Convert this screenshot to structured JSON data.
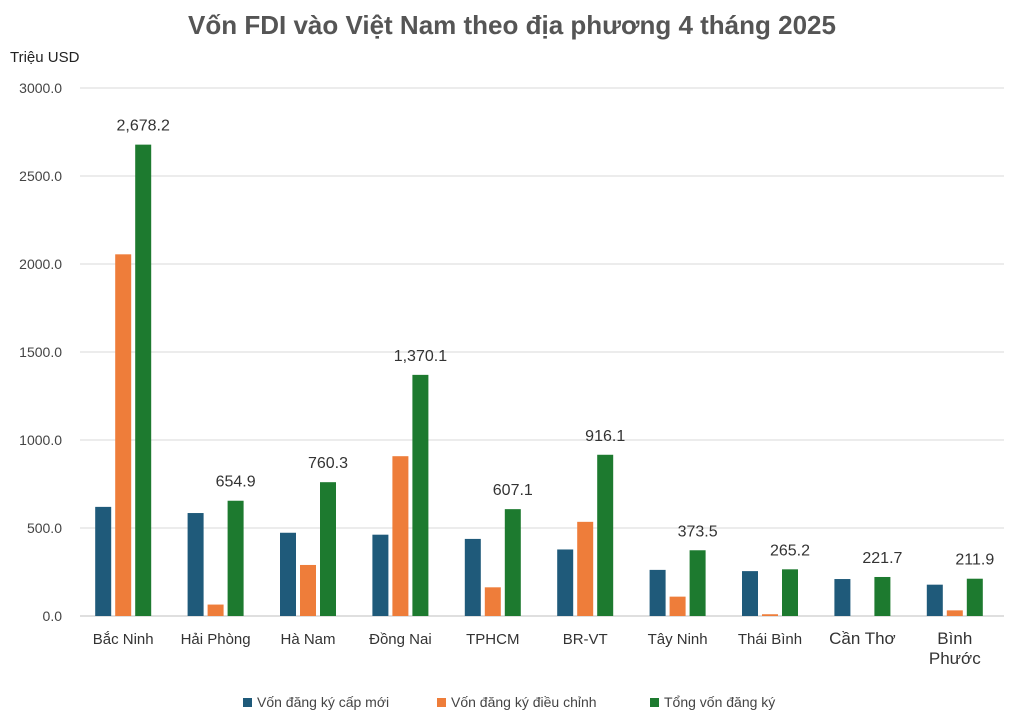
{
  "chart_data": {
    "type": "bar",
    "title": "Vốn FDI vào Việt Nam theo địa phương 4 tháng 2025",
    "ylabel": "Triệu USD",
    "xlabel": "",
    "ylim": [
      0,
      3000
    ],
    "yticks": [
      "0.0",
      "500.0",
      "1000.0",
      "1500.0",
      "2000.0",
      "2500.0",
      "3000.0"
    ],
    "grid": true,
    "legend_position": "bottom",
    "categories": [
      [
        "Bắc Ninh"
      ],
      [
        "Hải Phòng"
      ],
      [
        "Hà Nam"
      ],
      [
        "Đồng Nai"
      ],
      [
        "TPHCM"
      ],
      [
        "BR-VT"
      ],
      [
        "Tây Ninh"
      ],
      [
        "Thái Bình"
      ],
      [
        "Cần Thơ"
      ],
      [
        "Bình",
        "Phước"
      ]
    ],
    "series": [
      {
        "name": "Vốn đăng ký cấp mới",
        "color": "#1f5a7a",
        "values": [
          620,
          585,
          473,
          462,
          438,
          378,
          262,
          255,
          210,
          178
        ]
      },
      {
        "name": "Vốn đăng ký điều chỉnh",
        "color": "#ee7d3a",
        "values": [
          2055,
          65,
          290,
          908,
          163,
          535,
          110,
          10,
          0,
          32
        ]
      },
      {
        "name": "Tổng vốn đăng ký",
        "color": "#1d7a2f",
        "values": [
          2678.2,
          654.9,
          760.3,
          1370.1,
          607.1,
          916.1,
          373.5,
          265.2,
          221.7,
          211.9
        ]
      }
    ],
    "data_labels": [
      "2,678.2",
      "654.9",
      "760.3",
      "1,370.1",
      "607.1",
      "916.1",
      "373.5",
      "265.2",
      "221.7",
      "211.9"
    ]
  }
}
